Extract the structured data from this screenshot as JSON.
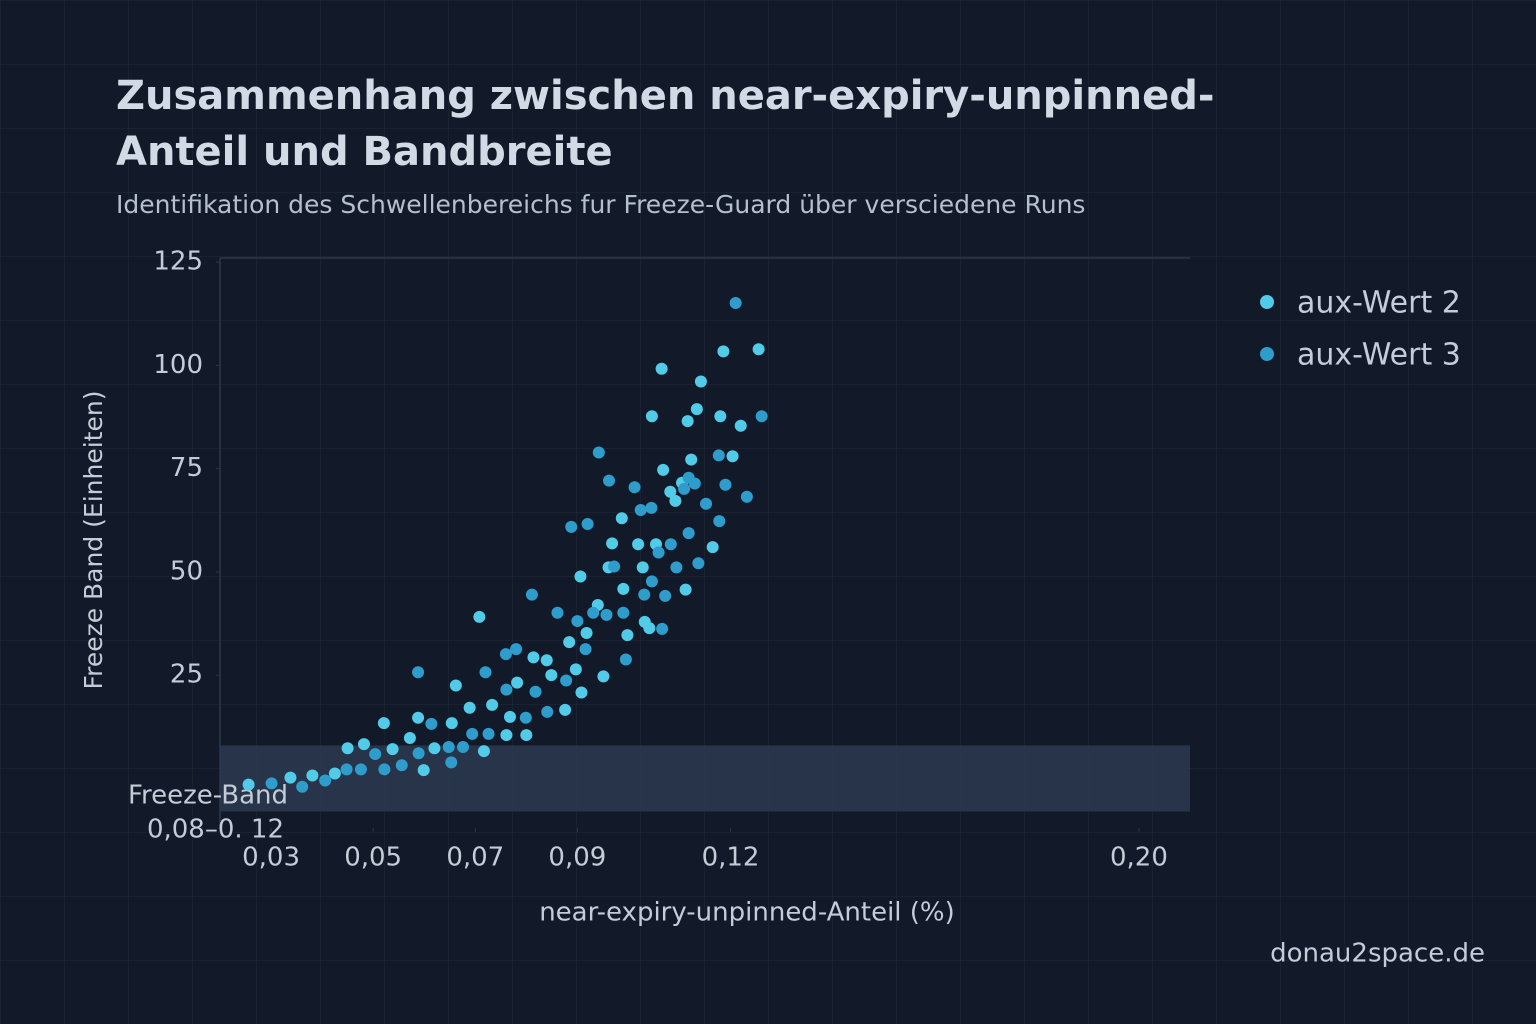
{
  "chart_data": {
    "type": "scatter",
    "title": "Zusammenhang zwischen near-expiry-unpinned-Anteil und Bandbreite",
    "subtitle": "Identifikation des Schwellenbereichs fur Freeze-Guard über versciedene Runs",
    "x_label": "near-expiry-unpinned-Anteil (%)",
    "y_label": "Freeze  Band (Einheiten)",
    "watermark": "donau2space.de",
    "xlim": [
      0.02,
      0.21
    ],
    "ylim": [
      -12,
      126
    ],
    "xticks": [
      {
        "value": 0.03,
        "label": "0,03"
      },
      {
        "value": 0.05,
        "label": "0,05"
      },
      {
        "value": 0.07,
        "label": "0,07"
      },
      {
        "value": 0.09,
        "label": "0,09"
      },
      {
        "value": 0.12,
        "label": "0,12"
      },
      {
        "value": 0.2,
        "label": "0,20"
      }
    ],
    "yticks": [
      25,
      50,
      75,
      100,
      125
    ],
    "legend_position": "top-right",
    "band": {
      "label": "Freeze-Band",
      "range_label": "0,08–0. 12",
      "ylim": [
        -8,
        8
      ],
      "color": "#2c3a4f"
    },
    "series": [
      {
        "name": "aux-Wert 2",
        "color": "#52cbe8",
        "x": [
          0.0256,
          0.0338,
          0.0381,
          0.0425,
          0.045,
          0.0482,
          0.0521,
          0.0538,
          0.0572,
          0.0588,
          0.0599,
          0.062,
          0.0654,
          0.0662,
          0.0689,
          0.0708,
          0.0717,
          0.0733,
          0.0761,
          0.0768,
          0.0782,
          0.08,
          0.0814,
          0.084,
          0.0849,
          0.0876,
          0.0884,
          0.0897,
          0.0908,
          0.0906,
          0.0918,
          0.094,
          0.0951,
          0.0961,
          0.0968,
          0.0987,
          0.099,
          0.0998,
          0.1019,
          0.1028,
          0.1032,
          0.1046,
          0.1054,
          0.1065,
          0.1068,
          0.1082,
          0.1092,
          0.1105,
          0.1116,
          0.1123,
          0.1134,
          0.1142,
          0.1165,
          0.118,
          0.1186,
          0.1204,
          0.122,
          0.1255,
          0.1112,
          0.1041
        ],
        "values": [
          -1.5,
          0.2,
          0.7,
          1.2,
          7.3,
          8.3,
          13.4,
          7.1,
          9.8,
          14.7,
          2.0,
          7.3,
          13.4,
          22.5,
          17.1,
          39.1,
          6.6,
          17.8,
          10.5,
          14.9,
          23.2,
          10.5,
          29.3,
          28.6,
          25.0,
          16.6,
          33.0,
          26.4,
          20.8,
          48.9,
          35.2,
          42.0,
          24.7,
          51.1,
          56.9,
          63.0,
          45.9,
          34.7,
          56.7,
          51.1,
          37.9,
          87.7,
          56.7,
          99.2,
          74.7,
          69.4,
          67.2,
          71.6,
          86.5,
          77.2,
          89.4,
          96.1,
          56.0,
          87.7,
          103.4,
          78.0,
          85.4,
          103.9,
          45.7,
          36.4
        ]
      },
      {
        "name": "aux-Wert 3",
        "color": "#2f9dcc",
        "x": [
          0.0301,
          0.0361,
          0.0406,
          0.0448,
          0.0476,
          0.0504,
          0.0522,
          0.0556,
          0.0588,
          0.0589,
          0.0614,
          0.0648,
          0.0653,
          0.0676,
          0.0694,
          0.072,
          0.0726,
          0.076,
          0.0761,
          0.078,
          0.0799,
          0.0811,
          0.0818,
          0.0841,
          0.0861,
          0.0878,
          0.0888,
          0.09,
          0.0916,
          0.092,
          0.0931,
          0.0942,
          0.0957,
          0.0962,
          0.0972,
          0.099,
          0.0995,
          0.1012,
          0.1024,
          0.1031,
          0.1045,
          0.1046,
          0.1059,
          0.1066,
          0.1072,
          0.1083,
          0.1094,
          0.1109,
          0.1118,
          0.113,
          0.1137,
          0.1152,
          0.1177,
          0.1178,
          0.119,
          0.121,
          0.1232,
          0.1261,
          0.1118
        ],
        "values": [
          -1.2,
          -2.0,
          -0.5,
          2.2,
          2.2,
          5.9,
          2.2,
          3.2,
          25.7,
          6.1,
          13.2,
          7.6,
          3.9,
          7.6,
          10.8,
          25.7,
          10.8,
          30.1,
          21.5,
          31.3,
          14.7,
          44.5,
          21.0,
          16.1,
          40.1,
          23.7,
          60.9,
          38.1,
          31.3,
          61.6,
          40.1,
          78.9,
          39.6,
          72.1,
          51.3,
          40.1,
          28.8,
          70.5,
          65.0,
          44.5,
          65.5,
          47.7,
          54.7,
          36.2,
          44.2,
          56.7,
          51.1,
          70.1,
          59.4,
          71.4,
          52.1,
          66.5,
          78.2,
          62.3,
          71.1,
          115.1,
          68.2,
          87.7,
          72.8
        ]
      }
    ]
  }
}
